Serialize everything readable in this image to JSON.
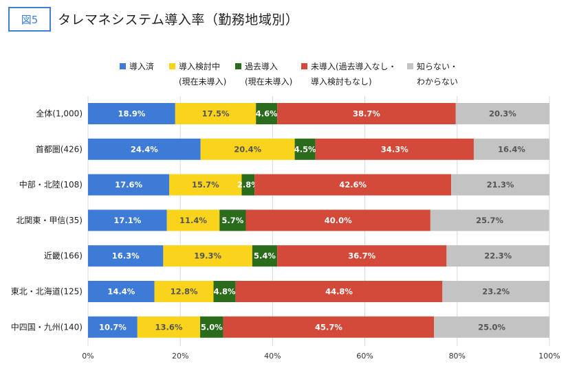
{
  "header": {
    "badge": "図5",
    "title": "タレマネシステム導入率（勤務地域別）"
  },
  "legend": [
    {
      "line1": "導入済",
      "line2": "",
      "color": "#3e7bd6"
    },
    {
      "line1": "導入検討中",
      "line2": "(現在未導入)",
      "color": "#fad31d"
    },
    {
      "line1": "過去導入",
      "line2": "(現在未導入)",
      "color": "#2b6b1c"
    },
    {
      "line1": "未導入(過去導入なし・",
      "line2": "導入検討もなし)",
      "color": "#d44a3a"
    },
    {
      "line1": "知らない・",
      "line2": "わからない",
      "color": "#c3c3c3"
    }
  ],
  "chart_data": {
    "type": "bar",
    "orientation": "horizontal",
    "stacked": true,
    "normalized_percent": true,
    "categories": [
      "全体(1,000)",
      "首都圏(426)",
      "中部・北陸(108)",
      "北関東・甲信(35)",
      "近畿(166)",
      "東北・北海道(125)",
      "中四国・九州(140)"
    ],
    "series": [
      {
        "name": "導入済",
        "color": "#3e7bd6",
        "label_color": "#ffffff",
        "values": [
          18.9,
          24.4,
          17.6,
          17.1,
          16.3,
          14.4,
          10.7
        ]
      },
      {
        "name": "導入検討中(現在未導入)",
        "color": "#fad31d",
        "label_color": "#555555",
        "values": [
          17.5,
          20.4,
          15.7,
          11.4,
          19.3,
          12.8,
          13.6
        ]
      },
      {
        "name": "過去導入(現在未導入)",
        "color": "#2b6b1c",
        "label_color": "#ffffff",
        "values": [
          4.6,
          4.5,
          2.8,
          5.7,
          5.4,
          4.8,
          5.0
        ]
      },
      {
        "name": "未導入(過去導入なし・導入検討もなし)",
        "color": "#d44a3a",
        "label_color": "#ffffff",
        "values": [
          38.7,
          34.3,
          42.6,
          40.0,
          36.7,
          44.8,
          45.7
        ]
      },
      {
        "name": "知らない・わからない",
        "color": "#c3c3c3",
        "label_color": "#555555",
        "values": [
          20.3,
          16.4,
          21.3,
          25.7,
          22.3,
          23.2,
          25.0
        ]
      }
    ],
    "xlim": [
      0,
      100
    ],
    "xticks": [
      "0%",
      "20%",
      "40%",
      "60%",
      "80%",
      "100%"
    ],
    "xtick_values": [
      0,
      20,
      40,
      60,
      80,
      100
    ],
    "grid": true,
    "legend_position": "top",
    "value_suffix": "%"
  }
}
